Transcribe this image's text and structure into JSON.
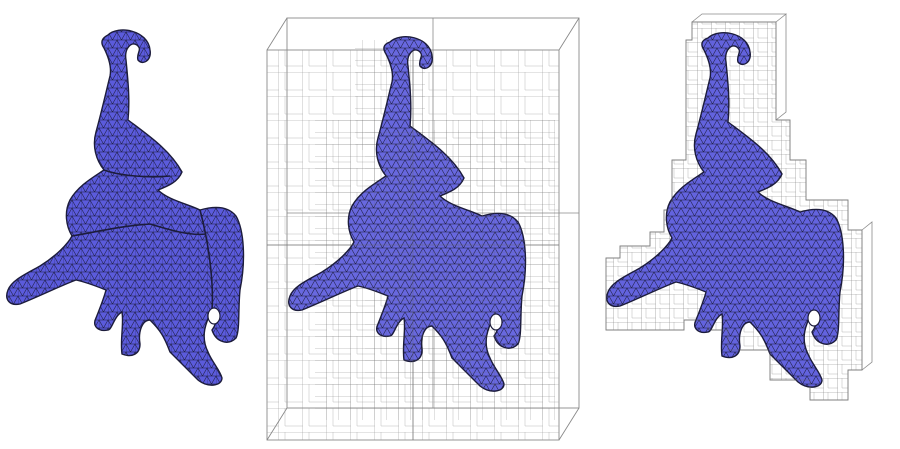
{
  "figure": {
    "panels": [
      {
        "id": "mesh-only",
        "octree": "none"
      },
      {
        "id": "mesh-full-octree",
        "octree": "full"
      },
      {
        "id": "mesh-surface-octree",
        "octree": "surface"
      }
    ]
  },
  "colors": {
    "background": "#ffffff",
    "mesh_fill": "#5b5bdc",
    "mesh_fill_dark": "#3e3eb4",
    "mesh_fill_light": "#7d7dee",
    "mesh_edge": "#1c1c3c",
    "octree_line": "#8a8a8a",
    "octree_line_dense": "#6e6e6e"
  },
  "icons": {
    "model": "elephant-mesh-icon",
    "grid": "octree-cell-icon"
  }
}
